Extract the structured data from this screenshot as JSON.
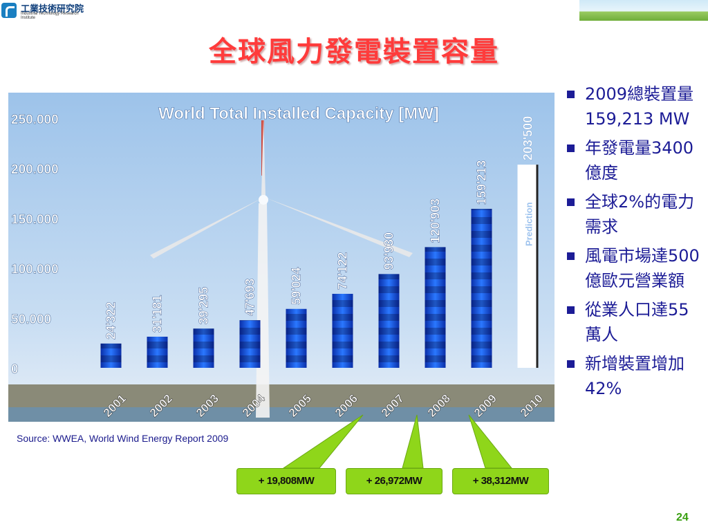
{
  "logo": {
    "name_zh": "工業技術研究院",
    "name_en": "Industrial Technology Research Institute"
  },
  "title": "全球風力發電裝置容量",
  "chart_data": {
    "type": "bar",
    "title": "World Total Installed Capacity [MW]",
    "categories": [
      "2001",
      "2002",
      "2003",
      "2004",
      "2005",
      "2006",
      "2007",
      "2008",
      "2009",
      "2010"
    ],
    "values": [
      24322,
      31181,
      39295,
      47693,
      59024,
      74122,
      93930,
      120903,
      159213,
      203500
    ],
    "value_labels": [
      "24'322",
      "31'181",
      "39'295",
      "47'693",
      "59'024",
      "74'122",
      "93'930",
      "120'903",
      "159'213",
      "203'500"
    ],
    "y_ticks": [
      0,
      50000,
      100000,
      150000,
      200000,
      250000
    ],
    "y_tick_labels": [
      "0",
      "50.000",
      "100.000",
      "150.000",
      "200.000",
      "250.000"
    ],
    "ylim": [
      0,
      250000
    ],
    "prediction_label": "Prediction",
    "prediction_index": 9,
    "colors": {
      "bar": "#1c5fe0",
      "bar_dark": "#0a2ea8",
      "prediction": "#ffffff",
      "text": "#ffffff"
    }
  },
  "source": "Source: WWEA, World Wind Energy Report 2009",
  "increments": [
    {
      "label": "+ 19,808MW",
      "year": "2007"
    },
    {
      "label": "+ 26,972MW",
      "year": "2008"
    },
    {
      "label": "+ 38,312MW",
      "year": "2009"
    }
  ],
  "bullets": [
    "2009總裝置量159,213 MW",
    "年發電量3400億度",
    "全球2%的電力需求",
    "風電市場達500億歐元營業額",
    "從業人口達55萬人",
    "新增裝置增加42%"
  ],
  "page_number": "24"
}
